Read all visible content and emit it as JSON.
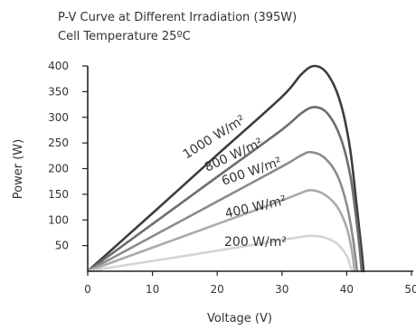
{
  "chart_data": {
    "type": "line",
    "title": "P-V Curve at Different Irradiation (395W)",
    "subtitle": "Cell Temperature 25ºC",
    "xlabel": "Voltage (V)",
    "ylabel": "Power (W)",
    "xlim": [
      0,
      50
    ],
    "ylim": [
      0,
      400
    ],
    "x_ticks": [
      "0",
      "10",
      "20",
      "30",
      "40",
      "50"
    ],
    "y_ticks": [
      "50",
      "100",
      "150",
      "200",
      "250",
      "300",
      "350",
      "400"
    ],
    "grid": false,
    "series": [
      {
        "name": "1000 W/m²",
        "color": "#3d3d3d",
        "points": [
          [
            0,
            0
          ],
          [
            10,
            113
          ],
          [
            20,
            227
          ],
          [
            30,
            340
          ],
          [
            33,
            384
          ],
          [
            35,
            400
          ],
          [
            37,
            385
          ],
          [
            39,
            330
          ],
          [
            40.5,
            240
          ],
          [
            41.6,
            120
          ],
          [
            42.3,
            40
          ],
          [
            42.6,
            0
          ]
        ]
      },
      {
        "name": "800 W/m²",
        "color": "#6e6e6e",
        "points": [
          [
            0,
            0
          ],
          [
            10,
            92
          ],
          [
            20,
            184
          ],
          [
            30,
            276
          ],
          [
            33,
            308
          ],
          [
            35,
            320
          ],
          [
            37,
            308
          ],
          [
            39,
            262
          ],
          [
            40.5,
            190
          ],
          [
            41.5,
            100
          ],
          [
            42.1,
            30
          ],
          [
            42.3,
            0
          ]
        ]
      },
      {
        "name": "600 W/m²",
        "color": "#8c8c8c",
        "points": [
          [
            0,
            0
          ],
          [
            10,
            68
          ],
          [
            20,
            136
          ],
          [
            30,
            204
          ],
          [
            33,
            226
          ],
          [
            34.5,
            232
          ],
          [
            36.5,
            222
          ],
          [
            38.5,
            188
          ],
          [
            40,
            130
          ],
          [
            41,
            60
          ],
          [
            41.6,
            0
          ]
        ]
      },
      {
        "name": "400 W/m²",
        "color": "#ababab",
        "points": [
          [
            0,
            0
          ],
          [
            10,
            46
          ],
          [
            20,
            92
          ],
          [
            30,
            138
          ],
          [
            33,
            153
          ],
          [
            34.5,
            158
          ],
          [
            36.5,
            150
          ],
          [
            38.5,
            126
          ],
          [
            40,
            85
          ],
          [
            40.8,
            40
          ],
          [
            41.2,
            0
          ]
        ]
      },
      {
        "name": "200 W/m²",
        "color": "#d4d4d4",
        "points": [
          [
            0,
            0
          ],
          [
            10,
            20
          ],
          [
            20,
            40
          ],
          [
            30,
            61
          ],
          [
            33,
            67
          ],
          [
            34.5,
            69
          ],
          [
            36.5,
            66
          ],
          [
            38.5,
            54
          ],
          [
            40,
            30
          ],
          [
            40.5,
            12
          ],
          [
            40.8,
            0
          ]
        ]
      }
    ]
  }
}
